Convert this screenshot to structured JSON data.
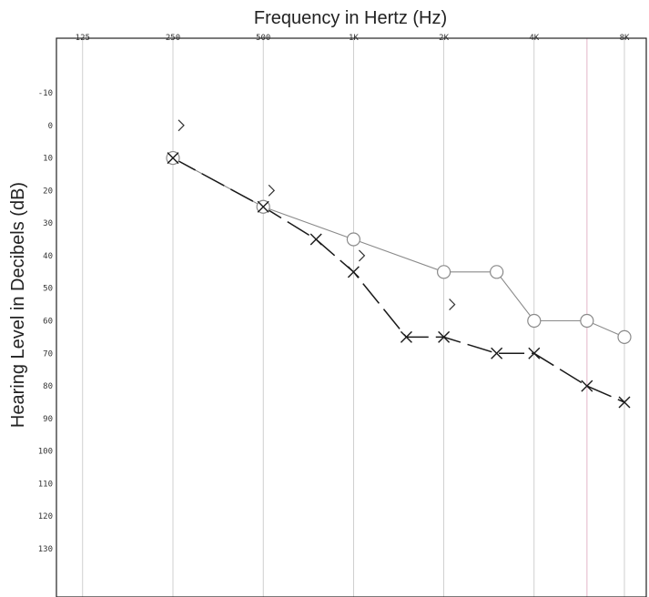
{
  "chart_data": {
    "type": "line",
    "title": "Frequency in Hertz (Hz)",
    "xlabel": "Frequency in Hertz (Hz)",
    "ylabel": "Hearing Level in Decibels (dB)",
    "x_ticks": [
      {
        "label": "125",
        "freq": 125
      },
      {
        "label": "250",
        "freq": 250
      },
      {
        "label": "500",
        "freq": 500
      },
      {
        "label": "1K",
        "freq": 1000
      },
      {
        "label": "2K",
        "freq": 2000
      },
      {
        "label": "4K",
        "freq": 4000
      },
      {
        "label": "8K",
        "freq": 8000
      }
    ],
    "y_ticks": [
      {
        "label": "-10",
        "value": -10
      },
      {
        "label": "0",
        "value": 0
      },
      {
        "label": "10",
        "value": 10
      },
      {
        "label": "20",
        "value": 20
      },
      {
        "label": "30",
        "value": 30
      },
      {
        "label": "40",
        "value": 40
      },
      {
        "label": "50",
        "value": 50
      },
      {
        "label": "60",
        "value": 60
      },
      {
        "label": "70",
        "value": 70
      },
      {
        "label": "80",
        "value": 80
      },
      {
        "label": "90",
        "value": 90
      },
      {
        "label": "100",
        "value": 100
      },
      {
        "label": "110",
        "value": 110
      },
      {
        "label": "120",
        "value": 120
      },
      {
        "label": "130",
        "value": 130
      }
    ],
    "y_inverted": true,
    "x_scale": "log",
    "ylim": [
      -15,
      145
    ],
    "series": [
      {
        "marker": "circle",
        "line_style": "solid",
        "color": "#8a8a8a",
        "points": [
          {
            "freq": 250,
            "db": 10
          },
          {
            "freq": 500,
            "db": 25
          },
          {
            "freq": 1000,
            "db": 35
          },
          {
            "freq": 2000,
            "db": 45
          },
          {
            "freq": 3000,
            "db": 45
          },
          {
            "freq": 4000,
            "db": 60
          },
          {
            "freq": 6000,
            "db": 60
          },
          {
            "freq": 8000,
            "db": 65
          }
        ]
      },
      {
        "marker": "x",
        "line_style": "dashed",
        "color": "#1a1a1a",
        "points": [
          {
            "freq": 250,
            "db": 10
          },
          {
            "freq": 500,
            "db": 25
          },
          {
            "freq": 750,
            "db": 35
          },
          {
            "freq": 1000,
            "db": 45
          },
          {
            "freq": 1500,
            "db": 65
          },
          {
            "freq": 2000,
            "db": 65
          },
          {
            "freq": 3000,
            "db": 70
          },
          {
            "freq": 4000,
            "db": 70
          },
          {
            "freq": 6000,
            "db": 80
          },
          {
            "freq": 8000,
            "db": 85
          }
        ]
      },
      {
        "marker": "bracket-right",
        "line_style": "none",
        "color": "#333333",
        "points": [
          {
            "freq": 250,
            "db": 0
          },
          {
            "freq": 500,
            "db": 20
          },
          {
            "freq": 1000,
            "db": 40
          },
          {
            "freq": 2000,
            "db": 55
          }
        ]
      }
    ]
  }
}
